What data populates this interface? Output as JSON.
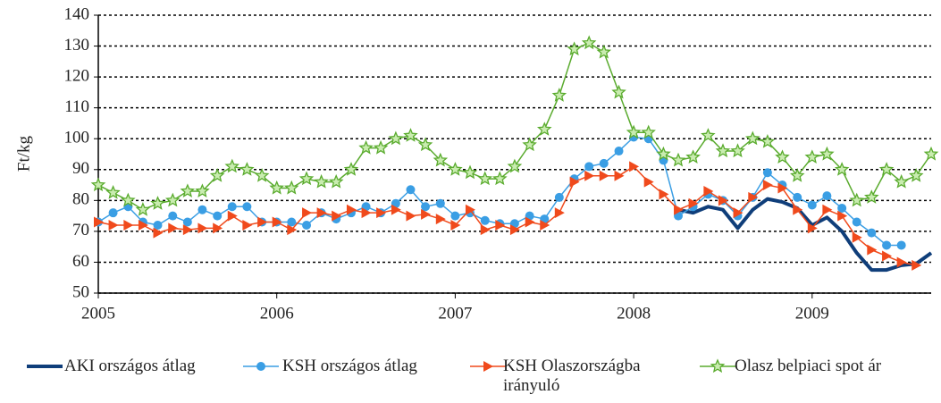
{
  "chart_data": {
    "type": "line",
    "ylabel": "Ft/kg",
    "x": [
      2005,
      2005.083,
      2005.167,
      2005.25,
      2005.333,
      2005.417,
      2005.5,
      2005.583,
      2005.667,
      2005.75,
      2005.833,
      2005.917,
      2006,
      2006.083,
      2006.167,
      2006.25,
      2006.333,
      2006.417,
      2006.5,
      2006.583,
      2006.667,
      2006.75,
      2006.833,
      2006.917,
      2007,
      2007.083,
      2007.167,
      2007.25,
      2007.333,
      2007.417,
      2007.5,
      2007.583,
      2007.667,
      2007.75,
      2007.833,
      2007.917,
      2008,
      2008.083,
      2008.167,
      2008.25,
      2008.333,
      2008.417,
      2008.5,
      2008.583,
      2008.667,
      2008.75,
      2008.833,
      2008.917,
      2009,
      2009.083,
      2009.167,
      2009.25,
      2009.333,
      2009.417,
      2009.5,
      2009.583,
      2009.667
    ],
    "xlim": [
      2005,
      2009.667
    ],
    "xticks": [
      2005,
      2006,
      2007,
      2008,
      2009
    ],
    "ylim": [
      50,
      140
    ],
    "yticks": [
      50,
      60,
      70,
      80,
      90,
      100,
      110,
      120,
      130,
      140
    ],
    "grid": true,
    "legend": "bottom",
    "series": [
      {
        "name": "AKI országos átlag",
        "color": "#0f3e7a",
        "marker": "none",
        "line_width": 4,
        "values": [
          null,
          null,
          null,
          null,
          null,
          null,
          null,
          null,
          null,
          null,
          null,
          null,
          null,
          null,
          null,
          null,
          null,
          null,
          null,
          null,
          null,
          null,
          null,
          null,
          null,
          null,
          null,
          null,
          null,
          null,
          null,
          null,
          null,
          null,
          null,
          null,
          null,
          null,
          null,
          77,
          76,
          78,
          77,
          71,
          77,
          80.5,
          79.5,
          77.5,
          72,
          74.5,
          70,
          63,
          57.5,
          57.5,
          59,
          59.5,
          63
        ]
      },
      {
        "name": "KSH országos átlag",
        "color": "#3a9ee4",
        "marker": "circle",
        "line_width": 1.5,
        "values": [
          73,
          76,
          78,
          73,
          72,
          75,
          73,
          77,
          75,
          78,
          78,
          73,
          73,
          73,
          72,
          76,
          74,
          76,
          78,
          76,
          79,
          83.5,
          78,
          79,
          75,
          76,
          73.5,
          72.5,
          72.5,
          75,
          74,
          81,
          87,
          91,
          92,
          96,
          100.5,
          100,
          93,
          75,
          78,
          82,
          80,
          75,
          81,
          89,
          85,
          81,
          78.5,
          81.5,
          77.5,
          73,
          69.5,
          65.5,
          65.5,
          null,
          null
        ]
      },
      {
        "name": "KSH Olaszországba irányuló",
        "color": "#f04a1c",
        "marker": "triangle",
        "line_width": 1.5,
        "values": [
          73,
          72,
          72,
          72,
          69.5,
          71,
          70.5,
          71,
          71,
          75,
          72,
          73,
          73,
          70.5,
          76,
          76,
          75,
          77,
          76,
          76,
          77,
          75,
          75.5,
          74,
          72,
          77,
          70.5,
          72,
          70.5,
          73,
          72,
          76,
          86,
          88,
          88,
          88,
          91,
          86,
          82,
          77,
          79,
          83,
          80,
          76,
          81,
          85,
          84,
          77,
          71,
          77,
          75,
          68,
          64,
          62,
          60,
          59,
          null
        ]
      },
      {
        "name": "Olasz belpiaci spot ár",
        "color": "#5aab2e",
        "marker": "star",
        "line_width": 1.5,
        "values": [
          85,
          82.5,
          80,
          77,
          79,
          80,
          83,
          83,
          88,
          91,
          90,
          88,
          84,
          84,
          87,
          86,
          86,
          90,
          97,
          97,
          100,
          101,
          98,
          93,
          90,
          89,
          87,
          87,
          91,
          98,
          103,
          114,
          129,
          131,
          128,
          115,
          102,
          102,
          95,
          93,
          94,
          101,
          96,
          96,
          100,
          99,
          94,
          88,
          94,
          95,
          90,
          80,
          81,
          90,
          86,
          88,
          95
        ]
      }
    ]
  }
}
